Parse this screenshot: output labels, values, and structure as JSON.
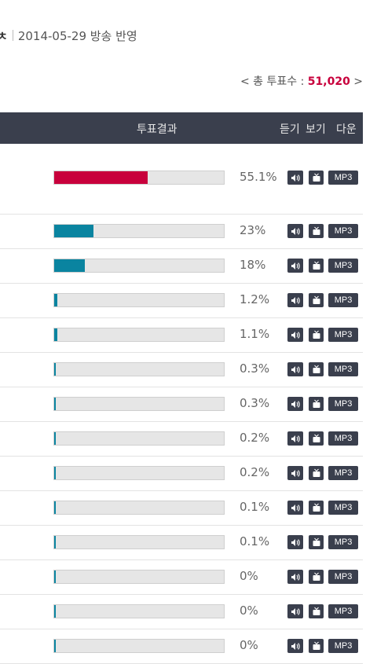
{
  "header_line": {
    "title_fragment": "ㅊ",
    "broadcast_date": "2014-05-29 방송 반영"
  },
  "total_votes": {
    "prefix": "< 총 투표수 : ",
    "value": "51,020",
    "suffix": " >"
  },
  "table_header": {
    "result": "투표결과",
    "listen": "듣기",
    "watch": "보기",
    "download": "다운"
  },
  "colors": {
    "first_fill": "#c8003c",
    "other_fill": "#0a84a0",
    "header_bg": "#3a3f4d"
  },
  "mp3_label": "MP3",
  "rows": [
    {
      "percent_label": "55.1%",
      "value": 55.1
    },
    {
      "percent_label": "23%",
      "value": 23
    },
    {
      "percent_label": "18%",
      "value": 18
    },
    {
      "percent_label": "1.2%",
      "value": 1.2
    },
    {
      "percent_label": "1.1%",
      "value": 1.1
    },
    {
      "percent_label": "0.3%",
      "value": 0.3
    },
    {
      "percent_label": "0.3%",
      "value": 0.3
    },
    {
      "percent_label": "0.2%",
      "value": 0.2
    },
    {
      "percent_label": "0.2%",
      "value": 0.2
    },
    {
      "percent_label": "0.1%",
      "value": 0.1
    },
    {
      "percent_label": "0.1%",
      "value": 0.1
    },
    {
      "percent_label": "0%",
      "value": 0
    },
    {
      "percent_label": "0%",
      "value": 0
    },
    {
      "percent_label": "0%",
      "value": 0
    }
  ]
}
